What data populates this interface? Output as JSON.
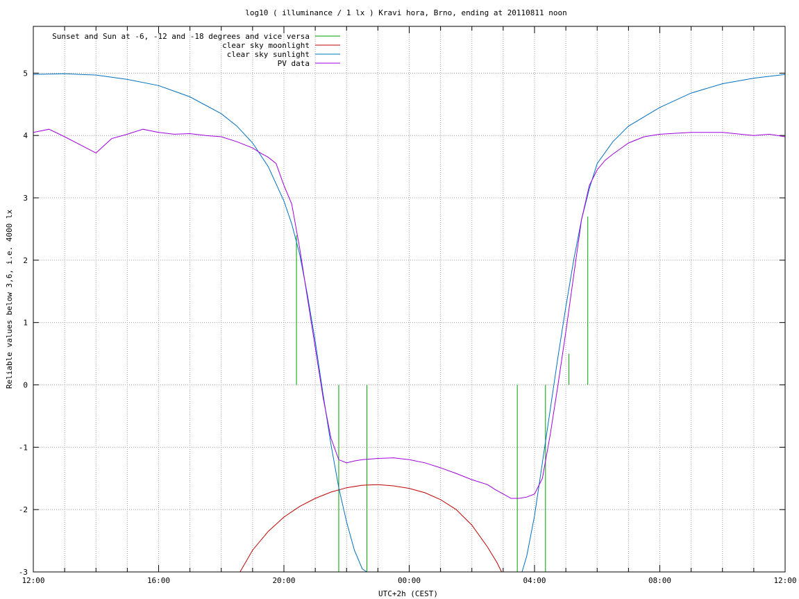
{
  "chart_data": {
    "type": "line",
    "title": "log10 ( illuminance / 1 lx ) Kravi hora, Brno, ending at 20110811 noon",
    "xlabel": "UTC+2h (CEST)",
    "ylabel": "Reliable values below 3,6, i.e. 4000 lx",
    "xlim": [
      -12,
      12
    ],
    "ylim": [
      -3,
      5.75
    ],
    "x_unit": "hours relative to 00:00 (UTC+2h)",
    "x_ticks": [
      {
        "x": -12,
        "label": "12:00"
      },
      {
        "x": -8,
        "label": "16:00"
      },
      {
        "x": -4,
        "label": "20:00"
      },
      {
        "x": 0,
        "label": "00:00"
      },
      {
        "x": 4,
        "label": "04:00"
      },
      {
        "x": 8,
        "label": "08:00"
      },
      {
        "x": 12,
        "label": "12:00"
      }
    ],
    "y_ticks": [
      {
        "y": -3,
        "label": "-3"
      },
      {
        "y": -2,
        "label": "-2"
      },
      {
        "y": -1,
        "label": "-1"
      },
      {
        "y": 0,
        "label": "0"
      },
      {
        "y": 1,
        "label": "1"
      },
      {
        "y": 2,
        "label": "2"
      },
      {
        "y": 3,
        "label": "3"
      },
      {
        "y": 4,
        "label": "4"
      },
      {
        "y": 5,
        "label": "5"
      }
    ],
    "grid": true,
    "legend_position": "top-left",
    "series": [
      {
        "name": "Sunset and Sun at -6, -12 and -18 degrees and vice versa",
        "color": "#00a000",
        "kind": "vertical-lines",
        "lines": [
          {
            "x": -3.6,
            "y0": 0,
            "y1": 2.4
          },
          {
            "x": -2.25,
            "y0": -3,
            "y1": 0
          },
          {
            "x": -1.35,
            "y0": -3,
            "y1": 0
          },
          {
            "x": 3.45,
            "y0": -3,
            "y1": 0
          },
          {
            "x": 4.35,
            "y0": -3,
            "y1": 0
          },
          {
            "x": 5.1,
            "y0": 0,
            "y1": 0.5
          },
          {
            "x": 5.7,
            "y0": 0,
            "y1": 2.7
          }
        ]
      },
      {
        "name": "clear sky moonlight",
        "color": "#c00000",
        "x": [
          -5.4,
          -5.0,
          -4.5,
          -4.0,
          -3.5,
          -3.0,
          -2.5,
          -2.0,
          -1.5,
          -1.0,
          -0.5,
          0.0,
          0.5,
          1.0,
          1.5,
          2.0,
          2.5,
          2.8,
          2.95
        ],
        "y": [
          -3.0,
          -2.65,
          -2.35,
          -2.12,
          -1.95,
          -1.82,
          -1.72,
          -1.65,
          -1.61,
          -1.6,
          -1.62,
          -1.66,
          -1.73,
          -1.84,
          -2.0,
          -2.25,
          -2.6,
          -2.85,
          -3.0
        ]
      },
      {
        "name": "clear sky sunlight",
        "color": "#0070c0",
        "x": [
          -12,
          -11,
          -10,
          -9,
          -8,
          -7,
          -6,
          -5.5,
          -5,
          -4.5,
          -4,
          -3.75,
          -3.5,
          -3.25,
          -3,
          -2.75,
          -2.5,
          -2.25,
          -2,
          -1.75,
          -1.5,
          -1.35,
          3.6,
          3.75,
          4,
          4.25,
          4.5,
          4.75,
          5,
          5.25,
          5.5,
          5.75,
          6,
          6.5,
          7,
          8,
          9,
          10,
          11,
          12
        ],
        "y": [
          4.98,
          4.99,
          4.97,
          4.9,
          4.8,
          4.62,
          4.35,
          4.15,
          3.88,
          3.5,
          2.95,
          2.58,
          2.1,
          1.45,
          0.7,
          -0.15,
          -0.95,
          -1.65,
          -2.2,
          -2.65,
          -2.95,
          -3.0,
          -3.0,
          -2.75,
          -2.1,
          -1.25,
          -0.4,
          0.45,
          1.25,
          2.0,
          2.65,
          3.15,
          3.55,
          3.9,
          4.15,
          4.45,
          4.68,
          4.83,
          4.92,
          4.98
        ]
      },
      {
        "name": "PV data",
        "color": "#a000e0",
        "x": [
          -12,
          -11.5,
          -11,
          -10.5,
          -10,
          -9.5,
          -9,
          -8.5,
          -8,
          -7.5,
          -7,
          -6.5,
          -6,
          -5.5,
          -5,
          -4.75,
          -4.5,
          -4.25,
          -4,
          -3.75,
          -3.5,
          -3.25,
          -3,
          -2.75,
          -2.5,
          -2.25,
          -2,
          -1.75,
          -1.5,
          -1,
          -0.5,
          0,
          0.5,
          1,
          1.5,
          2,
          2.5,
          2.75,
          3,
          3.25,
          3.5,
          3.75,
          4,
          4.25,
          4.5,
          4.75,
          5,
          5.25,
          5.5,
          5.75,
          6,
          6.25,
          6.5,
          7,
          7.5,
          8,
          9,
          10,
          11,
          11.5,
          12
        ],
        "y": [
          4.05,
          4.1,
          3.98,
          3.85,
          3.72,
          3.95,
          4.02,
          4.1,
          4.05,
          4.02,
          4.03,
          4.0,
          3.98,
          3.9,
          3.8,
          3.72,
          3.65,
          3.55,
          3.2,
          2.9,
          2.2,
          1.4,
          0.6,
          -0.2,
          -0.85,
          -1.2,
          -1.25,
          -1.22,
          -1.2,
          -1.18,
          -1.17,
          -1.2,
          -1.25,
          -1.33,
          -1.42,
          -1.52,
          -1.6,
          -1.68,
          -1.75,
          -1.82,
          -1.82,
          -1.8,
          -1.75,
          -1.5,
          -0.8,
          0.0,
          0.85,
          1.75,
          2.65,
          3.2,
          3.45,
          3.6,
          3.7,
          3.88,
          3.98,
          4.02,
          4.05,
          4.05,
          4.0,
          4.02,
          3.98
        ]
      }
    ]
  }
}
